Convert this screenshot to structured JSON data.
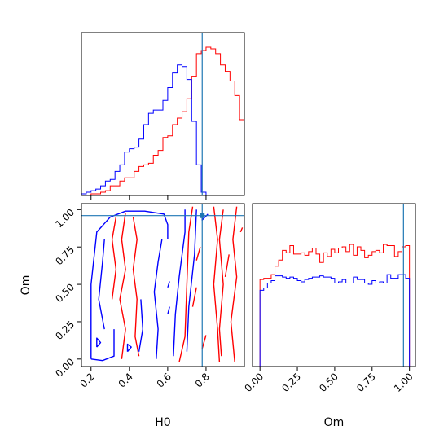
{
  "chart_data": {
    "type": "corner",
    "parameters": [
      "H0",
      "Om"
    ],
    "truth": {
      "H0": 0.78,
      "Om": 0.96
    },
    "colors": {
      "series_red": "#ff0000",
      "series_blue": "#0000ff",
      "truth": "#1f77b4"
    },
    "panels": [
      {
        "id": "H0-marginal",
        "type": "histogram",
        "xlim": [
          0.15,
          1.0
        ],
        "bin_edges": [
          0.15,
          0.175,
          0.2,
          0.225,
          0.25,
          0.275,
          0.3,
          0.325,
          0.35,
          0.375,
          0.4,
          0.425,
          0.45,
          0.475,
          0.5,
          0.525,
          0.55,
          0.575,
          0.6,
          0.625,
          0.65,
          0.675,
          0.7,
          0.725,
          0.75,
          0.775,
          0.8,
          0.825,
          0.85,
          0.875,
          0.9,
          0.925,
          0.95,
          0.975,
          1.0
        ],
        "series": [
          {
            "name": "",
            "color": "red",
            "counts": [
              0,
              0,
              1,
              1,
              2,
              3,
              6,
              6,
              9,
              11,
              11,
              15,
              18,
              19,
              20,
              25,
              28,
              36,
              37,
              44,
              48,
              52,
              60,
              74,
              88,
              90,
              92,
              91,
              88,
              81,
              77,
              71,
              62,
              47
            ]
          },
          {
            "name": "",
            "color": "blue",
            "counts": [
              1,
              2,
              3,
              4,
              6,
              9,
              10,
              15,
              19,
              27,
              29,
              30,
              35,
              44,
              51,
              53,
              53,
              59,
              67,
              76,
              81,
              80,
              72,
              46,
              19,
              2,
              0,
              0,
              0,
              0,
              0,
              0,
              0,
              0
            ]
          }
        ]
      },
      {
        "id": "H0-Om-joint",
        "type": "contour",
        "xlabel": "H0",
        "ylabel": "Om",
        "xlim": [
          0.15,
          1.0
        ],
        "ylim": [
          -0.05,
          1.04
        ],
        "xticks": [
          "0.2",
          "0.4",
          "0.6",
          "0.8"
        ],
        "yticks": [
          "0.00",
          "0.25",
          "0.50",
          "0.75",
          "1.00"
        ],
        "series": [
          {
            "name": "",
            "color": "red",
            "contours": [
              [
                [
                  0.66,
                  -0.02
                ],
                [
                  0.69,
                  0.15
                ],
                [
                  0.7,
                  0.5
                ],
                [
                  0.71,
                  0.85
                ],
                [
                  0.73,
                  1.02
                ]
              ],
              [
                [
                  0.87,
                  -0.02
                ],
                [
                  0.86,
                  0.2
                ],
                [
                  0.84,
                  0.5
                ],
                [
                  0.86,
                  0.8
                ],
                [
                  0.84,
                  1.02
                ]
              ],
              [
                [
                  0.88,
                  0.02
                ],
                [
                  0.87,
                  0.2
                ],
                [
                  0.89,
                  0.5
                ],
                [
                  0.87,
                  0.8
                ],
                [
                  0.89,
                  1.0
                ]
              ],
              [
                [
                  0.95,
                  -0.02
                ],
                [
                  0.93,
                  0.25
                ],
                [
                  0.96,
                  0.55
                ],
                [
                  0.94,
                  0.8
                ],
                [
                  0.96,
                  1.02
                ]
              ],
              [
                [
                  0.78,
                  0.07
                ],
                [
                  0.8,
                  0.16
                ]
              ],
              [
                [
                  0.73,
                  0.35
                ],
                [
                  0.75,
                  0.48
                ]
              ],
              [
                [
                  0.75,
                  0.66
                ],
                [
                  0.77,
                  0.75
                ]
              ],
              [
                [
                  0.9,
                  0.55
                ],
                [
                  0.92,
                  0.7
                ]
              ],
              [
                [
                  0.36,
                  0.0
                ],
                [
                  0.38,
                  0.2
                ],
                [
                  0.35,
                  0.4
                ],
                [
                  0.38,
                  0.6
                ],
                [
                  0.36,
                  0.8
                ],
                [
                  0.38,
                  0.98
                ]
              ],
              [
                [
                  0.45,
                  0.02
                ],
                [
                  0.43,
                  0.15
                ],
                [
                  0.44,
                  0.4
                ],
                [
                  0.42,
                  0.6
                ],
                [
                  0.44,
                  0.8
                ],
                [
                  0.42,
                  0.95
                ]
              ],
              [
                [
                  0.31,
                  0.4
                ],
                [
                  0.33,
                  0.6
                ],
                [
                  0.31,
                  0.8
                ],
                [
                  0.33,
                  0.95
                ]
              ],
              [
                [
                  0.98,
                  0.85
                ],
                [
                  0.99,
                  0.88
                ]
              ]
            ]
          },
          {
            "name": "",
            "color": "blue",
            "contours": [
              [
                [
                  0.2,
                  0.0
                ],
                [
                  0.2,
                  0.5
                ],
                [
                  0.23,
                  0.85
                ],
                [
                  0.3,
                  0.95
                ],
                [
                  0.38,
                  0.99
                ],
                [
                  0.48,
                  0.99
                ],
                [
                  0.58,
                  0.97
                ],
                [
                  0.6,
                  0.9
                ],
                [
                  0.6,
                  0.8
                ]
              ],
              [
                [
                  0.2,
                  0.0
                ],
                [
                  0.26,
                  -0.01
                ],
                [
                  0.32,
                  0.02
                ],
                [
                  0.32,
                  0.2
                ]
              ],
              [
                [
                  0.27,
                  0.2
                ],
                [
                  0.24,
                  0.4
                ],
                [
                  0.26,
                  0.65
                ],
                [
                  0.27,
                  0.8
                ]
              ],
              [
                [
                  0.54,
                  0.0
                ],
                [
                  0.55,
                  0.2
                ],
                [
                  0.53,
                  0.45
                ],
                [
                  0.55,
                  0.65
                ],
                [
                  0.57,
                  0.8
                ]
              ],
              [
                [
                  0.63,
                  0.02
                ],
                [
                  0.64,
                  0.3
                ],
                [
                  0.66,
                  0.55
                ],
                [
                  0.69,
                  0.85
                ],
                [
                  0.69,
                  1.0
                ]
              ],
              [
                [
                  0.7,
                  0.05
                ],
                [
                  0.71,
                  0.35
                ],
                [
                  0.74,
                  0.7
                ],
                [
                  0.75,
                  1.0
                ]
              ],
              [
                [
                  0.45,
                  0.05
                ],
                [
                  0.47,
                  0.2
                ],
                [
                  0.46,
                  0.4
                ]
              ],
              [
                [
                  0.23,
                  0.08
                ],
                [
                  0.25,
                  0.11
                ],
                [
                  0.23,
                  0.14
                ],
                [
                  0.23,
                  0.08
                ]
              ],
              [
                [
                  0.39,
                  0.05
                ],
                [
                  0.41,
                  0.08
                ],
                [
                  0.39,
                  0.1
                ],
                [
                  0.39,
                  0.05
                ]
              ],
              [
                [
                  0.6,
                  0.48
                ],
                [
                  0.61,
                  0.52
                ]
              ],
              [
                [
                  0.6,
                  0.3
                ],
                [
                  0.61,
                  0.35
                ]
              ],
              [
                [
                  0.81,
                  0.97
                ],
                [
                  0.78,
                  0.93
                ],
                [
                  0.78,
                  0.97
                ]
              ]
            ]
          }
        ]
      },
      {
        "id": "Om-marginal",
        "type": "histogram",
        "xlabel": "Om",
        "xlim": [
          -0.05,
          1.04
        ],
        "xticks": [
          "0.00",
          "0.25",
          "0.50",
          "0.75",
          "1.00"
        ],
        "bin_edges": [
          0.0,
          0.025,
          0.05,
          0.075,
          0.1,
          0.125,
          0.15,
          0.175,
          0.2,
          0.225,
          0.25,
          0.275,
          0.3,
          0.325,
          0.35,
          0.375,
          0.4,
          0.425,
          0.45,
          0.475,
          0.5,
          0.525,
          0.55,
          0.575,
          0.6,
          0.625,
          0.65,
          0.675,
          0.7,
          0.725,
          0.75,
          0.775,
          0.8,
          0.825,
          0.85,
          0.875,
          0.9,
          0.925,
          0.95,
          0.975,
          1.0
        ],
        "series": [
          {
            "name": "",
            "color": "red",
            "counts": [
              72,
              73,
              73,
              76,
              83,
              88,
              96,
              94,
              100,
              93,
              93,
              94,
              92,
              95,
              98,
              93,
              86,
              94,
              91,
              97,
              94,
              98,
              99,
              95,
              101,
              92,
              99,
              96,
              90,
              92,
              95,
              96,
              94,
              101,
              100,
              100,
              91,
              95,
              99,
              100
            ]
          },
          {
            "name": "",
            "color": "blue",
            "counts": [
              63,
              65,
              69,
              71,
              75,
              75,
              74,
              73,
              74,
              73,
              71,
              70,
              72,
              73,
              74,
              74,
              75,
              74,
              74,
              73,
              69,
              70,
              72,
              69,
              69,
              74,
              72,
              72,
              69,
              68,
              71,
              69,
              70,
              69,
              76,
              73,
              73,
              76,
              76,
              73
            ]
          }
        ]
      }
    ]
  }
}
